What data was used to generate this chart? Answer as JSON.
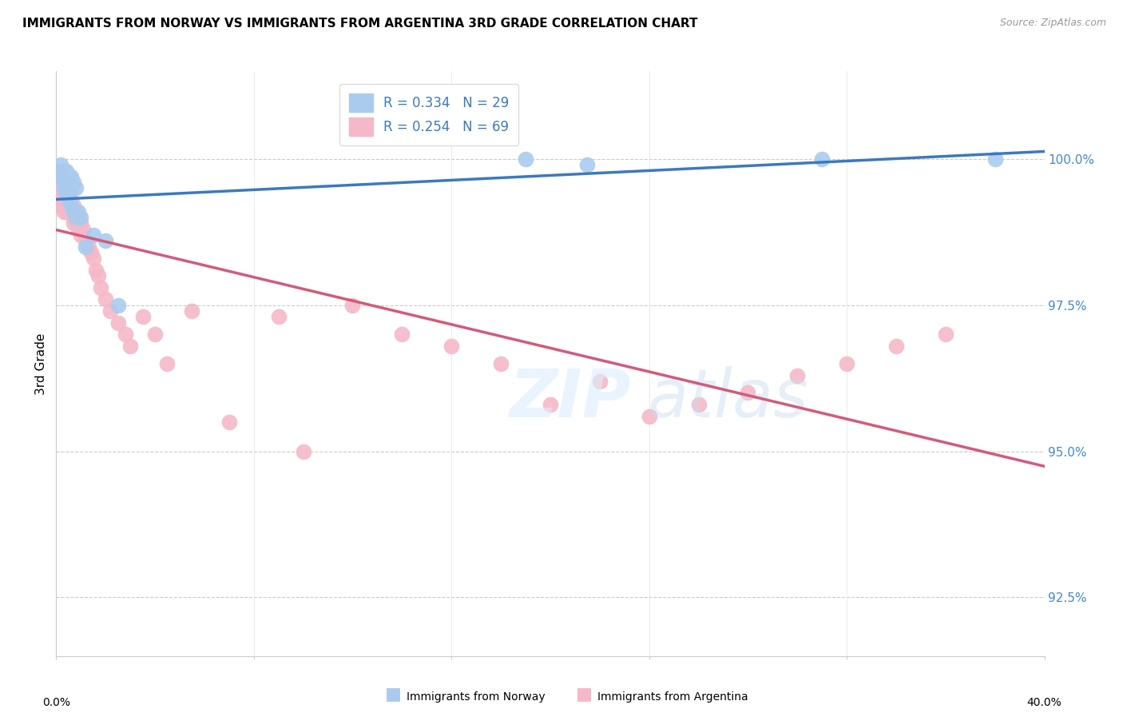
{
  "title": "IMMIGRANTS FROM NORWAY VS IMMIGRANTS FROM ARGENTINA 3RD GRADE CORRELATION CHART",
  "source": "Source: ZipAtlas.com",
  "ylabel": "3rd Grade",
  "yticks": [
    92.5,
    95.0,
    97.5,
    100.0
  ],
  "ytick_labels": [
    "92.5%",
    "95.0%",
    "97.5%",
    "100.0%"
  ],
  "xlim": [
    0.0,
    0.4
  ],
  "ylim": [
    91.5,
    101.5
  ],
  "norway_R": 0.334,
  "norway_N": 29,
  "argentina_R": 0.254,
  "argentina_N": 69,
  "norway_color": "#aacbee",
  "argentina_color": "#f5b8c8",
  "norway_line_color": "#3a7abf",
  "argentina_line_color": "#d45a7a",
  "norway_x": [
    0.001,
    0.002,
    0.002,
    0.003,
    0.003,
    0.003,
    0.004,
    0.004,
    0.004,
    0.005,
    0.005,
    0.005,
    0.006,
    0.006,
    0.006,
    0.007,
    0.007,
    0.008,
    0.008,
    0.009,
    0.01,
    0.012,
    0.015,
    0.02,
    0.025,
    0.19,
    0.215,
    0.31,
    0.38
  ],
  "norway_y": [
    99.7,
    99.8,
    99.9,
    99.5,
    99.7,
    99.8,
    99.4,
    99.6,
    99.8,
    99.3,
    99.5,
    99.7,
    99.2,
    99.5,
    99.7,
    99.1,
    99.6,
    99.0,
    99.5,
    99.1,
    99.0,
    98.5,
    98.7,
    98.6,
    97.5,
    100.0,
    99.9,
    100.0,
    100.0
  ],
  "argentina_x": [
    0.001,
    0.001,
    0.001,
    0.001,
    0.001,
    0.002,
    0.002,
    0.002,
    0.002,
    0.002,
    0.002,
    0.003,
    0.003,
    0.003,
    0.003,
    0.003,
    0.003,
    0.004,
    0.004,
    0.004,
    0.004,
    0.004,
    0.005,
    0.005,
    0.005,
    0.006,
    0.006,
    0.007,
    0.007,
    0.007,
    0.008,
    0.008,
    0.009,
    0.009,
    0.01,
    0.01,
    0.011,
    0.012,
    0.013,
    0.014,
    0.015,
    0.016,
    0.017,
    0.018,
    0.02,
    0.022,
    0.025,
    0.028,
    0.03,
    0.035,
    0.04,
    0.045,
    0.055,
    0.07,
    0.09,
    0.1,
    0.12,
    0.14,
    0.16,
    0.18,
    0.2,
    0.22,
    0.24,
    0.26,
    0.28,
    0.3,
    0.32,
    0.34,
    0.36
  ],
  "argentina_y": [
    99.8,
    99.7,
    99.6,
    99.5,
    99.4,
    99.7,
    99.6,
    99.5,
    99.4,
    99.3,
    99.2,
    99.6,
    99.5,
    99.4,
    99.3,
    99.2,
    99.1,
    99.5,
    99.4,
    99.3,
    99.2,
    99.1,
    99.4,
    99.3,
    99.2,
    99.3,
    99.1,
    99.2,
    99.0,
    98.9,
    99.1,
    98.9,
    99.0,
    98.8,
    98.9,
    98.7,
    98.8,
    98.6,
    98.5,
    98.4,
    98.3,
    98.1,
    98.0,
    97.8,
    97.6,
    97.4,
    97.2,
    97.0,
    96.8,
    97.3,
    97.0,
    96.5,
    97.4,
    95.5,
    97.3,
    95.0,
    97.5,
    97.0,
    96.8,
    96.5,
    95.8,
    96.2,
    95.6,
    95.8,
    96.0,
    96.3,
    96.5,
    96.8,
    97.0
  ]
}
